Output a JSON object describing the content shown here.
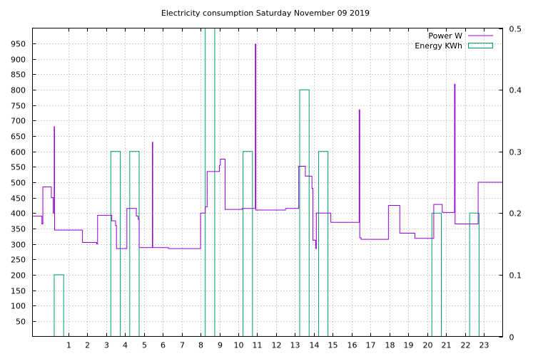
{
  "chart_data": {
    "type": "line",
    "title": "Electricity consumption Saturday November 09 2019",
    "xlabel": "",
    "ylabel": "",
    "y2label": "",
    "xlim": [
      -0.9,
      24
    ],
    "ylim": [
      0,
      1000
    ],
    "y2lim": [
      0,
      0.5
    ],
    "grid": true,
    "legend_position": "top-right",
    "x_ticks": [
      "1",
      "2",
      "3",
      "4",
      "5",
      "6",
      "7",
      "8",
      "9",
      "10",
      "11",
      "12",
      "13",
      "14",
      "15",
      "16",
      "17",
      "18",
      "19",
      "20",
      "21",
      "22",
      "23"
    ],
    "y_ticks": [
      "50",
      "100",
      "150",
      "200",
      "250",
      "300",
      "350",
      "400",
      "450",
      "500",
      "550",
      "600",
      "650",
      "700",
      "750",
      "800",
      "850",
      "900",
      "950"
    ],
    "y2_ticks": [
      "0",
      "0.1",
      "0.2",
      "0.3",
      "0.4",
      "0.5"
    ],
    "series": [
      {
        "name": "Power W",
        "kind": "step",
        "axis": "y",
        "color": "#9400d3",
        "points": [
          [
            -0.9,
            390
          ],
          [
            -0.4,
            390
          ],
          [
            -0.4,
            365
          ],
          [
            -0.35,
            365
          ],
          [
            -0.35,
            485
          ],
          [
            0.1,
            485
          ],
          [
            0.1,
            450
          ],
          [
            0.2,
            450
          ],
          [
            0.2,
            400
          ],
          [
            0.25,
            400
          ],
          [
            0.25,
            680
          ],
          [
            0.27,
            680
          ],
          [
            0.27,
            345
          ],
          [
            1.75,
            345
          ],
          [
            1.75,
            305
          ],
          [
            2.5,
            305
          ],
          [
            2.5,
            300
          ],
          [
            2.55,
            300
          ],
          [
            2.55,
            393
          ],
          [
            3.3,
            393
          ],
          [
            3.3,
            375
          ],
          [
            3.5,
            375
          ],
          [
            3.5,
            360
          ],
          [
            3.55,
            360
          ],
          [
            3.55,
            285
          ],
          [
            4.1,
            285
          ],
          [
            4.1,
            415
          ],
          [
            4.6,
            415
          ],
          [
            4.6,
            390
          ],
          [
            4.7,
            390
          ],
          [
            4.7,
            380
          ],
          [
            4.75,
            380
          ],
          [
            4.75,
            288
          ],
          [
            5.45,
            288
          ],
          [
            5.45,
            630
          ],
          [
            5.47,
            630
          ],
          [
            5.47,
            288
          ],
          [
            6.3,
            288
          ],
          [
            6.3,
            285
          ],
          [
            8.0,
            285
          ],
          [
            8.0,
            400
          ],
          [
            8.25,
            400
          ],
          [
            8.25,
            420
          ],
          [
            8.35,
            420
          ],
          [
            8.35,
            535
          ],
          [
            9.0,
            535
          ],
          [
            9.0,
            555
          ],
          [
            9.05,
            555
          ],
          [
            9.05,
            575
          ],
          [
            9.3,
            575
          ],
          [
            9.3,
            412
          ],
          [
            10.2,
            412
          ],
          [
            10.2,
            415
          ],
          [
            10.9,
            415
          ],
          [
            10.9,
            948
          ],
          [
            10.93,
            948
          ],
          [
            10.93,
            410
          ],
          [
            12.5,
            410
          ],
          [
            12.5,
            415
          ],
          [
            13.2,
            415
          ],
          [
            13.2,
            552
          ],
          [
            13.55,
            552
          ],
          [
            13.55,
            520
          ],
          [
            13.9,
            520
          ],
          [
            13.9,
            480
          ],
          [
            13.95,
            480
          ],
          [
            13.95,
            312
          ],
          [
            14.1,
            312
          ],
          [
            14.1,
            285
          ],
          [
            14.13,
            285
          ],
          [
            14.13,
            400
          ],
          [
            14.9,
            400
          ],
          [
            14.9,
            370
          ],
          [
            16.4,
            370
          ],
          [
            16.4,
            735
          ],
          [
            16.43,
            735
          ],
          [
            16.43,
            320
          ],
          [
            16.5,
            320
          ],
          [
            16.5,
            315
          ],
          [
            17.95,
            315
          ],
          [
            17.95,
            425
          ],
          [
            18.55,
            425
          ],
          [
            18.55,
            335
          ],
          [
            19.35,
            335
          ],
          [
            19.35,
            318
          ],
          [
            20.35,
            318
          ],
          [
            20.35,
            428
          ],
          [
            20.8,
            428
          ],
          [
            20.8,
            402
          ],
          [
            21.45,
            402
          ],
          [
            21.45,
            818
          ],
          [
            21.48,
            818
          ],
          [
            21.48,
            365
          ],
          [
            22.7,
            365
          ],
          [
            22.7,
            500
          ],
          [
            24.0,
            500
          ]
        ]
      },
      {
        "name": "Energy KWh",
        "kind": "boxes",
        "axis": "y2",
        "color": "#009e73",
        "boxes": [
          [
            0.5,
            0.1
          ],
          [
            3.5,
            0.3
          ],
          [
            4.5,
            0.3
          ],
          [
            8.5,
            0.5
          ],
          [
            10.5,
            0.3
          ],
          [
            13.5,
            0.4
          ],
          [
            14.5,
            0.3
          ],
          [
            20.5,
            0.2
          ],
          [
            22.5,
            0.2
          ]
        ],
        "box_width": 0.5
      }
    ]
  }
}
